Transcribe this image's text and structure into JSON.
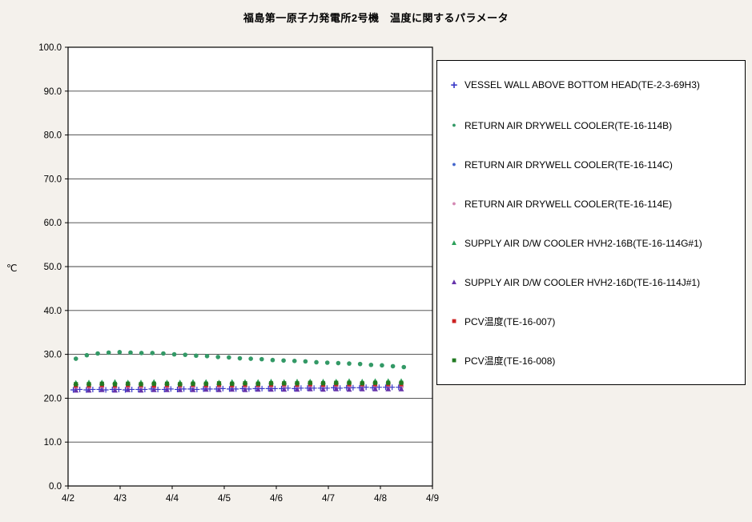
{
  "page": {
    "title": "福島第一原子力発電所2号機　温度に関するパラメータ"
  },
  "chart_data": {
    "type": "scatter",
    "title": "福島第一原子力発電所2号機　温度に関するパラメータ",
    "xlabel": "",
    "ylabel": "℃",
    "ylim": [
      0,
      100
    ],
    "ytick_step": 10,
    "ytick_decimals": 1,
    "xlim": [
      0,
      7
    ],
    "x_tick_labels": [
      "4/2",
      "4/3",
      "4/4",
      "4/5",
      "4/6",
      "4/7",
      "4/8",
      "4/9"
    ],
    "grid": "horizontal",
    "legend_position": "right",
    "plot_background": "#ffffff",
    "grid_color": "#404040",
    "series": [
      {
        "label": "VESSEL WALL ABOVE BOTTOM HEAD(TE-2-3-69H3)",
        "marker": "plus",
        "color": "#3a3ac8",
        "z": 1,
        "x": [
          0.1,
          0.225,
          0.35,
          0.475,
          0.6,
          0.725,
          0.85,
          0.975,
          1.1,
          1.225,
          1.35,
          1.475,
          1.6,
          1.725,
          1.85,
          1.975,
          2.1,
          2.225,
          2.35,
          2.475,
          2.6,
          2.725,
          2.85,
          2.975,
          3.1,
          3.225,
          3.35,
          3.475,
          3.6,
          3.725,
          3.85,
          3.975,
          4.1,
          4.225,
          4.35,
          4.475,
          4.6,
          4.725,
          4.85,
          4.975,
          5.1,
          5.225,
          5.35,
          5.475,
          5.6,
          5.725,
          5.85,
          5.975,
          6.1,
          6.225,
          6.35
        ],
        "y": [
          21.9,
          22.0,
          21.9,
          22.0,
          22.0,
          21.9,
          22.0,
          22.0,
          21.9,
          22.0,
          22.0,
          22.0,
          22.1,
          22.0,
          22.0,
          22.1,
          22.0,
          22.1,
          22.1,
          22.0,
          22.1,
          22.1,
          22.1,
          22.2,
          22.1,
          22.1,
          22.2,
          22.1,
          22.2,
          22.2,
          22.2,
          22.2,
          22.2,
          22.3,
          22.2,
          22.3,
          22.3,
          22.3,
          22.3,
          22.3,
          22.4,
          22.3,
          22.4,
          22.4,
          22.4,
          22.5,
          22.4,
          22.5,
          22.5,
          22.5,
          22.5
        ]
      },
      {
        "label": "RETURN AIR DRYWELL COOLER(TE-16-114B)",
        "marker": "circle",
        "color": "#339966",
        "z": 0,
        "x": [
          0.15,
          0.36,
          0.57,
          0.78,
          0.99,
          1.2,
          1.41,
          1.62,
          1.83,
          2.04,
          2.25,
          2.46,
          2.67,
          2.88,
          3.09,
          3.3,
          3.51,
          3.72,
          3.93,
          4.14,
          4.35,
          4.56,
          4.77,
          4.98,
          5.19,
          5.4,
          5.61,
          5.82,
          6.03,
          6.24,
          6.45
        ],
        "y": [
          29.0,
          29.8,
          30.2,
          30.4,
          30.5,
          30.4,
          30.3,
          30.3,
          30.2,
          30.0,
          29.9,
          29.7,
          29.6,
          29.4,
          29.3,
          29.1,
          29.0,
          28.9,
          28.7,
          28.6,
          28.5,
          28.4,
          28.2,
          28.1,
          28.0,
          27.9,
          27.8,
          27.6,
          27.5,
          27.3,
          27.1
        ]
      },
      {
        "label": "RETURN AIR DRYWELL COOLER(TE-16-114C)",
        "marker": "circle",
        "color": "#4466cc",
        "z": 0,
        "x": [
          0.15,
          0.4,
          0.65,
          0.9,
          1.15,
          1.4,
          1.65,
          1.9,
          2.15,
          2.4,
          2.65,
          2.9,
          3.15,
          3.4,
          3.65,
          3.9,
          4.15,
          4.4,
          4.65,
          4.9,
          5.15,
          5.4,
          5.65,
          5.9,
          6.15,
          6.4
        ],
        "y": [
          22.5,
          22.5,
          22.6,
          22.5,
          22.5,
          22.6,
          22.5,
          22.6,
          22.5,
          22.6,
          22.6,
          22.5,
          22.6,
          22.6,
          22.6,
          22.7,
          22.6,
          22.7,
          22.6,
          22.7,
          22.7,
          22.7,
          22.7,
          22.7,
          22.8,
          22.7
        ]
      },
      {
        "label": "RETURN AIR DRYWELL COOLER(TE-16-114E)",
        "marker": "circle",
        "color": "#d489b4",
        "z": 0,
        "x": [
          0.15,
          0.4,
          0.65,
          0.9,
          1.15,
          1.4,
          1.65,
          1.9,
          2.15,
          2.4,
          2.65,
          2.9,
          3.15,
          3.4,
          3.65,
          3.9,
          4.15,
          4.4,
          4.65,
          4.9,
          5.15,
          5.4,
          5.65,
          5.9,
          6.15,
          6.4
        ],
        "y": [
          22.2,
          22.2,
          22.3,
          22.2,
          22.2,
          22.3,
          22.2,
          22.3,
          22.2,
          22.3,
          22.3,
          22.3,
          22.3,
          22.3,
          22.4,
          22.3,
          22.4,
          22.3,
          22.4,
          22.4,
          22.4,
          22.4,
          22.4,
          22.5,
          22.4,
          22.5
        ]
      },
      {
        "label": "SUPPLY AIR D/W COOLER HVH2-16B(TE-16-114G#1)",
        "marker": "triangle",
        "color": "#2ca05a",
        "z": 0,
        "x": [
          0.15,
          0.4,
          0.65,
          0.9,
          1.15,
          1.4,
          1.65,
          1.9,
          2.15,
          2.4,
          2.65,
          2.9,
          3.15,
          3.4,
          3.65,
          3.9,
          4.15,
          4.4,
          4.65,
          4.9,
          5.15,
          5.4,
          5.65,
          5.9,
          6.15,
          6.4
        ],
        "y": [
          23.5,
          23.6,
          23.6,
          23.7,
          23.6,
          23.6,
          23.7,
          23.6,
          23.6,
          23.7,
          23.7,
          23.6,
          23.7,
          23.7,
          23.7,
          23.8,
          23.7,
          23.8,
          23.8,
          23.8,
          23.8,
          23.9,
          23.8,
          23.9,
          23.9,
          23.9
        ]
      },
      {
        "label": "SUPPLY AIR D/W COOLER HVH2-16D(TE-16-114J#1)",
        "marker": "triangle",
        "color": "#6633aa",
        "z": 0,
        "x": [
          0.15,
          0.4,
          0.65,
          0.9,
          1.15,
          1.4,
          1.65,
          1.9,
          2.15,
          2.4,
          2.65,
          2.9,
          3.15,
          3.4,
          3.65,
          3.9,
          4.15,
          4.4,
          4.65,
          4.9,
          5.15,
          5.4,
          5.65,
          5.9,
          6.15,
          6.4
        ],
        "y": [
          21.8,
          21.8,
          21.9,
          21.8,
          21.9,
          21.8,
          21.9,
          21.9,
          21.9,
          21.9,
          22.0,
          21.9,
          22.0,
          21.9,
          22.0,
          22.0,
          22.0,
          22.0,
          22.1,
          22.0,
          22.1,
          22.0,
          22.1,
          22.1,
          22.1,
          22.1
        ]
      },
      {
        "label": "PCV温度(TE-16-007)",
        "marker": "square",
        "color": "#cc2222",
        "z": 0,
        "x": [
          0.15,
          0.4,
          0.65,
          0.9,
          1.15,
          1.4,
          1.65,
          1.9,
          2.15,
          2.4,
          2.65,
          2.9,
          3.15,
          3.4,
          3.65,
          3.9,
          4.15,
          4.4,
          4.65,
          4.9,
          5.15,
          5.4,
          5.65,
          5.9,
          6.15,
          6.4
        ],
        "y": [
          22.9,
          22.9,
          23.0,
          22.9,
          23.0,
          23.0,
          22.9,
          23.0,
          23.0,
          23.1,
          23.0,
          23.1,
          23.0,
          23.1,
          23.1,
          23.1,
          23.2,
          23.1,
          23.2,
          23.1,
          23.2,
          23.2,
          23.2,
          23.2,
          23.2,
          23.2
        ]
      },
      {
        "label": "PCV温度(TE-16-008)",
        "marker": "square",
        "color": "#217a21",
        "z": 0,
        "x": [
          0.15,
          0.4,
          0.65,
          0.9,
          1.15,
          1.4,
          1.65,
          1.9,
          2.15,
          2.4,
          2.65,
          2.9,
          3.15,
          3.4,
          3.65,
          3.9,
          4.15,
          4.4,
          4.65,
          4.9,
          5.15,
          5.4,
          5.65,
          5.9,
          6.15,
          6.4
        ],
        "y": [
          23.2,
          23.2,
          23.3,
          23.2,
          23.3,
          23.2,
          23.3,
          23.3,
          23.2,
          23.3,
          23.3,
          23.4,
          23.3,
          23.4,
          23.3,
          23.4,
          23.4,
          23.4,
          23.5,
          23.4,
          23.5,
          23.5,
          23.4,
          23.5,
          23.5,
          23.5
        ]
      }
    ]
  }
}
